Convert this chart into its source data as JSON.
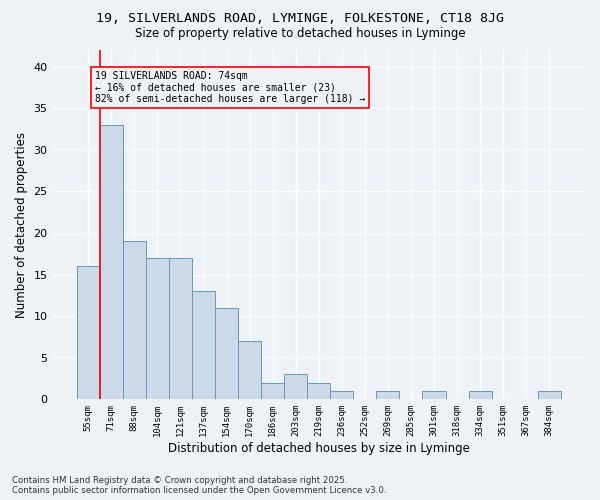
{
  "title": "19, SILVERLANDS ROAD, LYMINGE, FOLKESTONE, CT18 8JG",
  "subtitle": "Size of property relative to detached houses in Lyminge",
  "xlabel": "Distribution of detached houses by size in Lyminge",
  "ylabel": "Number of detached properties",
  "bar_color": "#ccd9e8",
  "bar_edge_color": "#6699bb",
  "categories": [
    "55sqm",
    "71sqm",
    "88sqm",
    "104sqm",
    "121sqm",
    "137sqm",
    "154sqm",
    "170sqm",
    "186sqm",
    "203sqm",
    "219sqm",
    "236sqm",
    "252sqm",
    "269sqm",
    "285sqm",
    "301sqm",
    "318sqm",
    "334sqm",
    "351sqm",
    "367sqm",
    "384sqm"
  ],
  "values": [
    16,
    33,
    19,
    17,
    17,
    13,
    11,
    7,
    2,
    3,
    2,
    1,
    0,
    1,
    0,
    1,
    0,
    1,
    0,
    0,
    1
  ],
  "ylim": [
    0,
    42
  ],
  "yticks": [
    0,
    5,
    10,
    15,
    20,
    25,
    30,
    35,
    40
  ],
  "redline_index": 1,
  "annotation_text": "19 SILVERLANDS ROAD: 74sqm\n← 16% of detached houses are smaller (23)\n82% of semi-detached houses are larger (118) →",
  "background_color": "#eef2f7",
  "grid_color": "#ffffff",
  "footer_line1": "Contains HM Land Registry data © Crown copyright and database right 2025.",
  "footer_line2": "Contains public sector information licensed under the Open Government Licence v3.0."
}
